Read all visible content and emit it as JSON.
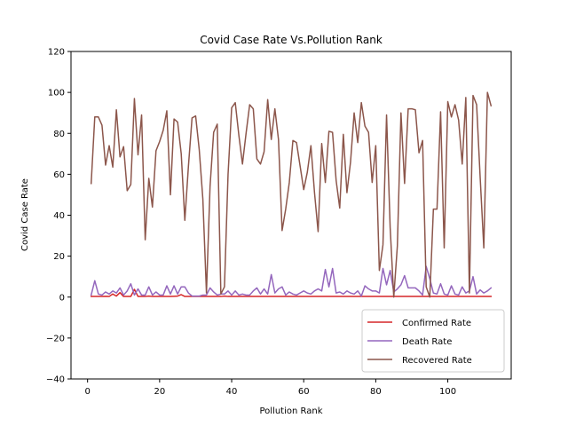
{
  "chart_data": {
    "type": "line",
    "title": "Covid Case Rate Vs.Pollution Rank",
    "xlabel": "Pollution Rank",
    "ylabel": "Covid Case Rate",
    "xlim": [
      -4.6,
      117.6
    ],
    "ylim": [
      -40,
      120
    ],
    "xticks": [
      0,
      20,
      40,
      60,
      80,
      100
    ],
    "yticks": [
      -40,
      -20,
      0,
      20,
      40,
      60,
      80,
      100,
      120
    ],
    "grid": false,
    "legend_position": "lower right",
    "series": [
      {
        "name": "Confirmed Rate",
        "color": "#d62728",
        "values": [
          0.3,
          0.3,
          0.3,
          0.3,
          0.4,
          0.3,
          1.5,
          0.5,
          2.2,
          0.3,
          0.3,
          0.3,
          3.8,
          0.3,
          0.3,
          0.3,
          0.5,
          0.3,
          0.3,
          0.3,
          0.3,
          0.3,
          0.3,
          0.4,
          0.5,
          1.2,
          0.3,
          0.3,
          0.3,
          0.3,
          0.3,
          0.3,
          0.3,
          0.3,
          0.3,
          0.3,
          0.3,
          0.5,
          0.3,
          0.3,
          0.3,
          0.3,
          0.3,
          0.3,
          0.3,
          0.3,
          0.3,
          0.3,
          0.3,
          0.3,
          0.3,
          0.3,
          0.3,
          0.3,
          0.3,
          0.3,
          0.3,
          0.3,
          0.3,
          0.3,
          0.3,
          0.3,
          0.3,
          0.3,
          0.3,
          0.3,
          0.3,
          0.3,
          0.3,
          0.3,
          0.3,
          0.3,
          0.3,
          0.3,
          0.3,
          0.3,
          0.3,
          0.3,
          0.3,
          0.3,
          0.3,
          0.3,
          0.3,
          0.3,
          0.3,
          0.3,
          0.3,
          0.3,
          0.3,
          0.3,
          0.3,
          0.3,
          0.3,
          0.3,
          0.3,
          0.3,
          0.3,
          0.3,
          0.3,
          0.3,
          0.3,
          0.3,
          0.3,
          0.3,
          0.3,
          0.3,
          0.3,
          0.3,
          0.3,
          0.3,
          0.3,
          0.3
        ]
      },
      {
        "name": "Death Rate",
        "color": "#9467bd",
        "values": [
          1,
          8,
          1.5,
          1,
          2.5,
          1.5,
          3,
          2,
          4.5,
          1,
          3,
          6.5,
          1,
          4,
          1,
          1,
          5,
          1,
          2.5,
          1,
          1,
          5.5,
          1.5,
          5.5,
          1.5,
          5,
          5,
          2,
          0.5,
          0.5,
          0.5,
          1,
          1,
          4.5,
          2.5,
          1,
          1.5,
          1.5,
          3,
          1,
          3,
          1,
          1.5,
          1,
          1,
          3,
          4.5,
          1.5,
          4,
          1.5,
          11,
          2,
          4,
          5,
          1,
          2.5,
          1.5,
          1,
          2,
          3,
          2,
          1.5,
          3,
          4,
          3,
          13.5,
          5,
          14,
          2,
          2.5,
          1.5,
          3,
          2,
          1.5,
          3,
          0.5,
          5.5,
          4,
          3,
          3,
          2,
          14,
          6,
          13,
          2.5,
          4,
          6,
          10.5,
          4.5,
          4.5,
          4.5,
          3,
          1,
          15,
          9,
          2,
          1.5,
          6.5,
          1.5,
          1,
          5.5,
          1.5,
          1,
          5,
          2,
          3,
          10,
          1.5,
          3.5,
          2,
          3,
          4.5
        ]
      },
      {
        "name": "Recovered Rate",
        "color": "#8c564b",
        "values": [
          55.5,
          88,
          88,
          84,
          64.5,
          74,
          63.5,
          91.5,
          68.5,
          73.5,
          52,
          55,
          97,
          69.5,
          89,
          28,
          58,
          44,
          71.5,
          76,
          81.5,
          91,
          50,
          87,
          85.5,
          70,
          37.5,
          64,
          87.5,
          88.5,
          72,
          48,
          2,
          54,
          80.5,
          84.5,
          1.5,
          5,
          60,
          92.5,
          95,
          79,
          65,
          80,
          94,
          92,
          67.5,
          65,
          71,
          96.5,
          77,
          92,
          77,
          32.5,
          43,
          56,
          76.5,
          75.5,
          64,
          52.5,
          61,
          74,
          51,
          32,
          75,
          56,
          81,
          80.5,
          57,
          43.5,
          79.5,
          51,
          66,
          90,
          75.5,
          95,
          83.5,
          80.5,
          56,
          74,
          13,
          25.5,
          89,
          34,
          0,
          25,
          90,
          55.5,
          92,
          92,
          91.5,
          70.5,
          76.5,
          5,
          0,
          43,
          43,
          90.5,
          24,
          95.5,
          88,
          94,
          86.5,
          65,
          97.5,
          2,
          98.5,
          94,
          58,
          24,
          100,
          93.5
        ]
      }
    ]
  }
}
